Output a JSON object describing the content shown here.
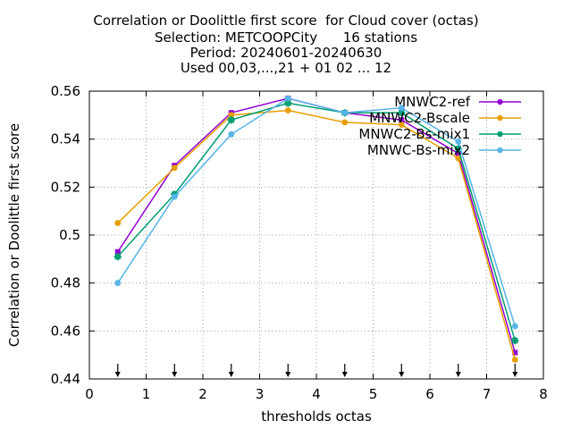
{
  "chart_data": {
    "type": "line",
    "title_lines": [
      "Correlation or Doolittle first score  for Cloud cover (octas)",
      "Selection: METCOOPCity      16 stations",
      "Period: 20240601-20240630",
      "Used 00,03,...,21 + 01 02 ... 12"
    ],
    "xlabel": "thresholds octas",
    "ylabel": "Correlation or Doolittle first score",
    "xlim": [
      0,
      8
    ],
    "ylim": [
      0.44,
      0.56
    ],
    "xticks": [
      "0",
      "1",
      "2",
      "3",
      "4",
      "5",
      "6",
      "7",
      "8"
    ],
    "yticks": [
      "0.44",
      "0.46",
      "0.48",
      "0.5",
      "0.52",
      "0.54",
      "0.56"
    ],
    "grid": true,
    "legend_position": "top-right",
    "x": [
      0.5,
      1.5,
      2.5,
      3.5,
      4.5,
      5.5,
      6.5,
      7.5
    ],
    "series": [
      {
        "name": "MNWC2-ref",
        "color": "#9400d3",
        "values": [
          0.493,
          0.529,
          0.551,
          0.557,
          0.551,
          0.548,
          0.534,
          0.451
        ]
      },
      {
        "name": "MNWC2-Bscale",
        "color": "#e69f00",
        "values": [
          0.505,
          0.528,
          0.55,
          0.552,
          0.547,
          0.546,
          0.532,
          0.448
        ]
      },
      {
        "name": "MNWC2-Bs-mix1",
        "color": "#009e73",
        "values": [
          0.491,
          0.517,
          0.548,
          0.555,
          0.551,
          0.551,
          0.536,
          0.456
        ]
      },
      {
        "name": "MNWC-Bs-mix2",
        "color": "#56b4e9",
        "values": [
          0.48,
          0.516,
          0.542,
          0.557,
          0.551,
          0.553,
          0.539,
          0.462
        ]
      }
    ],
    "arrow_markers_x": [
      0.5,
      1.5,
      2.5,
      3.5,
      4.5,
      5.5,
      6.5,
      7.5
    ]
  }
}
